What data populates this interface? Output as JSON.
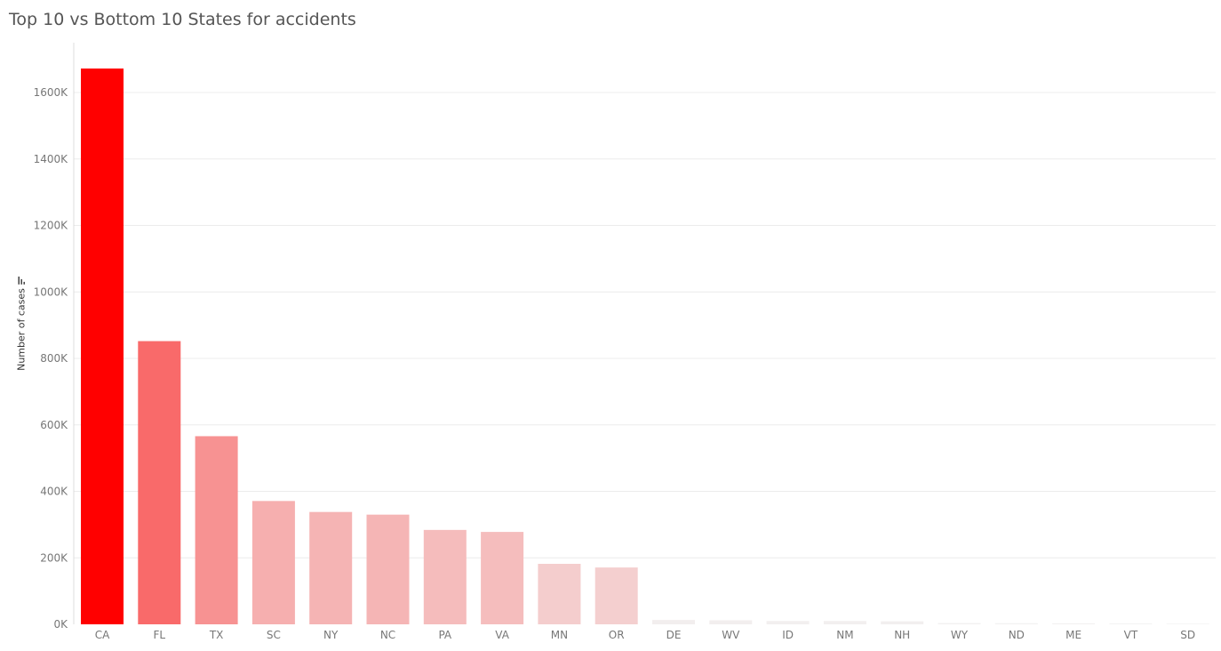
{
  "title": "Top 10 vs Bottom 10 States for accidents",
  "sort_icon": "sort-descending-icon",
  "chart_data": {
    "type": "bar",
    "title": "Top 10 vs Bottom 10 States for accidents",
    "xlabel": "",
    "ylabel": "Number of cases",
    "categories": [
      "CA",
      "FL",
      "TX",
      "SC",
      "NY",
      "NC",
      "PA",
      "VA",
      "MN",
      "OR",
      "DE",
      "WV",
      "ID",
      "NM",
      "NH",
      "WY",
      "ND",
      "ME",
      "VT",
      "SD"
    ],
    "values": [
      1672000,
      852000,
      566000,
      371000,
      338000,
      330000,
      284000,
      278000,
      182000,
      171000,
      13000,
      12000,
      10000,
      10000,
      9000,
      3800,
      3200,
      2900,
      2500,
      1800
    ],
    "ylim": [
      0,
      1700000
    ],
    "yticks": [
      0,
      200000,
      400000,
      600000,
      800000,
      1000000,
      1200000,
      1400000,
      1600000
    ],
    "ytick_labels": [
      "0K",
      "200K",
      "400K",
      "600K",
      "800K",
      "1000K",
      "1200K",
      "1400K",
      "1600K"
    ],
    "grid": true,
    "colors": {
      "max": "#ff0000",
      "light": "#f2f2f2",
      "gridline": "#ececec",
      "axis": "#dddddd"
    }
  }
}
